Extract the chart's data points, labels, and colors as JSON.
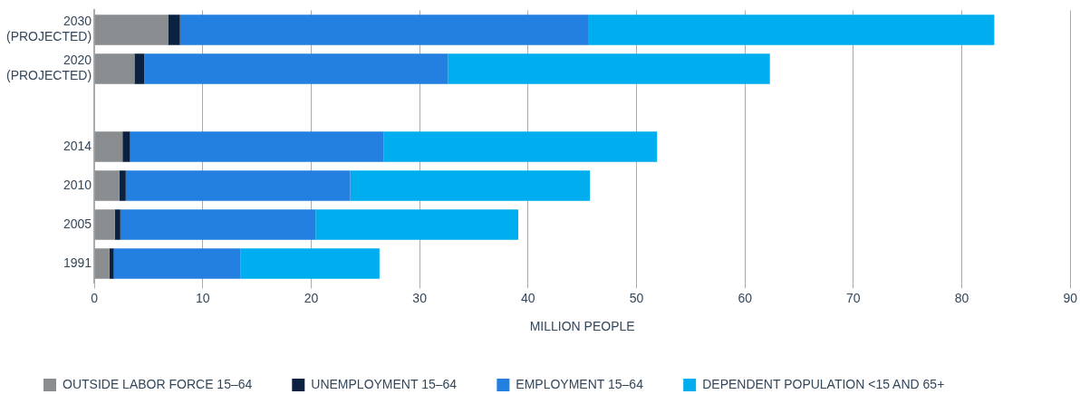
{
  "chart_data": {
    "type": "bar",
    "orientation": "horizontal",
    "stacked": true,
    "categories": [
      "2030\n(PROJECTED)",
      "2020\n(PROJECTED)",
      null,
      "2014",
      "2010",
      "2005",
      "1991"
    ],
    "series": [
      {
        "name": "OUTSIDE LABOR FORCE 15–64",
        "color": "#8a8d8f",
        "values": [
          6.8,
          3.7,
          null,
          2.6,
          2.3,
          1.9,
          1.4
        ]
      },
      {
        "name": "UNEMPLOYMENT 15–64",
        "color": "#0a2240",
        "values": [
          1.1,
          0.9,
          null,
          0.7,
          0.6,
          0.5,
          0.4
        ]
      },
      {
        "name": "EMPLOYMENT 15–64",
        "color": "#2380e0",
        "values": [
          37.7,
          28.0,
          null,
          23.4,
          20.7,
          18.0,
          11.7
        ]
      },
      {
        "name": "DEPENDENT POPULATION <15 AND 65+",
        "color": "#00aeef",
        "values": [
          37.4,
          29.7,
          null,
          25.2,
          22.1,
          18.7,
          12.8
        ]
      }
    ],
    "xlabel": "MILLION PEOPLE",
    "xlim": [
      0,
      90
    ],
    "xticks": [
      0,
      10,
      20,
      30,
      40,
      50,
      60,
      70,
      80,
      90
    ],
    "grid": "x",
    "legend": "bottom"
  }
}
